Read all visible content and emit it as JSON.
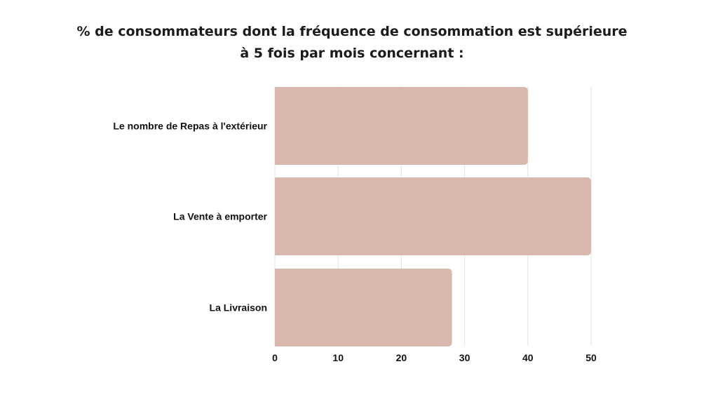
{
  "chart_data": {
    "type": "bar",
    "orientation": "horizontal",
    "title": "% de consommateurs dont la fréquence de consommation est supérieure à 5 fois par mois concernant :",
    "categories": [
      "Le nombre de Repas à l'extérieur",
      "La Vente à emporter",
      "La Livraison"
    ],
    "values": [
      40,
      50,
      28
    ],
    "xlim": [
      0,
      50
    ],
    "xticks": [
      0,
      10,
      20,
      30,
      40,
      50
    ],
    "xlabel": "",
    "ylabel": "",
    "grid": true,
    "legend": "none",
    "bar_color": "#d8b8ac"
  }
}
